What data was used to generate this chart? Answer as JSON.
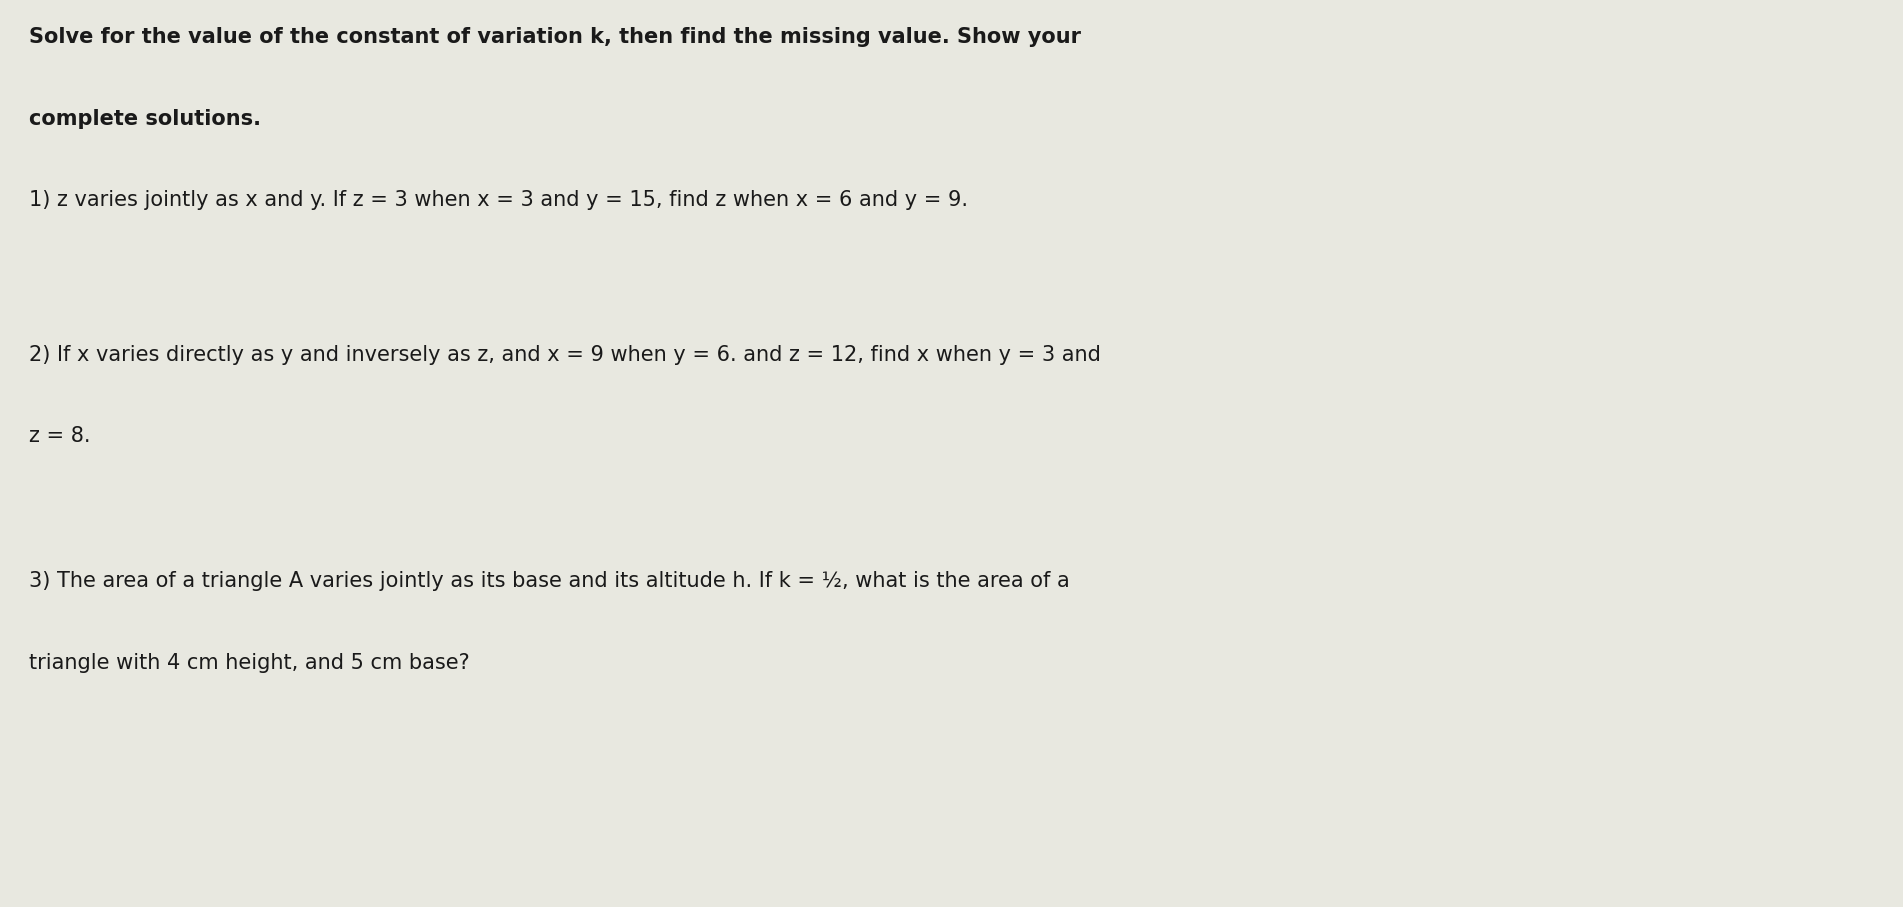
{
  "bg_color": "#e8e8e0",
  "text_color": "#1a1a1a",
  "title_line1": "Solve for the value of the constant of variation k, then find the missing value. Show your",
  "title_line2": "complete solutions.",
  "q1": "1) z varies jointly as x and y. If z = 3 when x = 3 and y = 15, find z when x = 6 and y = 9.",
  "q2_line1": "2) If x varies directly as y and inversely as z, and x = 9 when y = 6. and z = 12, find x when y = 3 and",
  "q2_line2": "z = 8.",
  "q3_line1": "3) The area of a triangle A varies jointly as its base and its altitude h. If k = ½, what is the area of a",
  "q3_line2": "triangle with 4 cm height, and 5 cm base?",
  "figsize": [
    19.03,
    9.07
  ],
  "dpi": 100
}
